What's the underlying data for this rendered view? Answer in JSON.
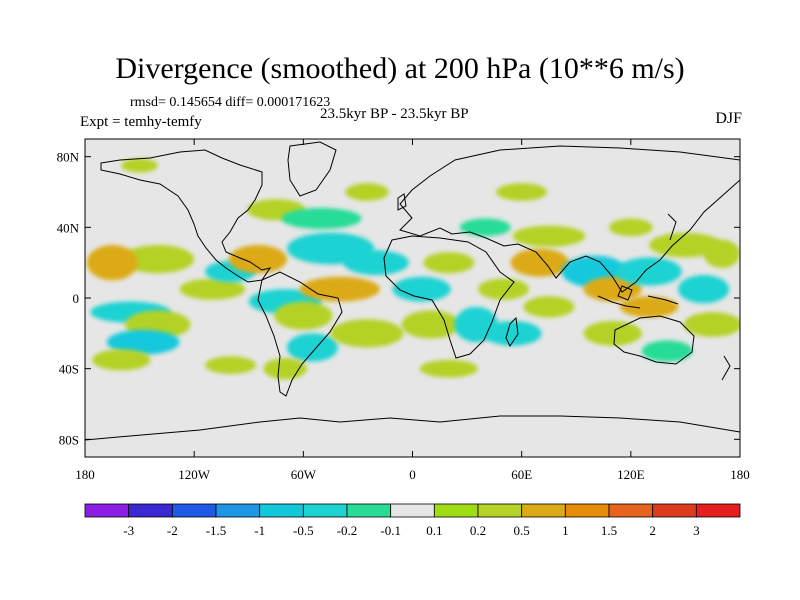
{
  "title": "Divergence (smoothed) at 200 hPa (10**6 m/s)",
  "stats": "rmsd= 0.145654 diff= 0.000171623",
  "experiment": "Expt = temhy-temfy",
  "subtitle": "23.5kyr BP - 23.5kyr BP",
  "season": "DJF",
  "colors": {
    "land_ocean_bg": "#e6e6e6",
    "coast": "#000000"
  },
  "chart_data": {
    "type": "heatmap",
    "projection": "cylindrical-equidistant",
    "lon_range": [
      -180,
      180
    ],
    "lat_range": [
      -90,
      90
    ],
    "x_ticks": [
      "180",
      "120W",
      "60W",
      "0",
      "60E",
      "120E",
      "180"
    ],
    "x_tick_values": [
      -180,
      -120,
      -60,
      0,
      60,
      120,
      180
    ],
    "y_ticks": [
      "80N",
      "40N",
      "0",
      "40S",
      "80S"
    ],
    "y_tick_values": [
      80,
      40,
      0,
      -40,
      -80
    ],
    "colorbar": {
      "labels": [
        "-3",
        "-2",
        "-1.5",
        "-1",
        "-0.5",
        "-0.2",
        "-0.1",
        "0.1",
        "0.2",
        "0.5",
        "1",
        "1.5",
        "2",
        "3"
      ],
      "levels": [
        -3,
        -2,
        -1.5,
        -1,
        -0.5,
        -0.2,
        -0.1,
        0.1,
        0.2,
        0.5,
        1,
        1.5,
        2,
        3
      ],
      "colors": [
        "#8c1ee6",
        "#3c28d2",
        "#1e5ae6",
        "#1e96e6",
        "#14c8dc",
        "#1ed2d2",
        "#28dc96",
        "#e6e6e6",
        "#a0dc14",
        "#b4d228",
        "#dcaa14",
        "#e68c0a",
        "#e6641e",
        "#dc3c1e",
        "#e61e1e"
      ]
    },
    "regions": [
      {
        "lon": -140,
        "lat": 22,
        "rx": 20,
        "ry": 8,
        "value": 0.3
      },
      {
        "lon": -165,
        "lat": 20,
        "rx": 14,
        "ry": 10,
        "value": 0.5
      },
      {
        "lon": -155,
        "lat": -8,
        "rx": 22,
        "ry": 6,
        "value": -0.3
      },
      {
        "lon": -140,
        "lat": -15,
        "rx": 18,
        "ry": 8,
        "value": 0.2
      },
      {
        "lon": -148,
        "lat": -25,
        "rx": 20,
        "ry": 7,
        "value": -0.6
      },
      {
        "lon": -160,
        "lat": -35,
        "rx": 16,
        "ry": 6,
        "value": 0.2
      },
      {
        "lon": -110,
        "lat": 5,
        "rx": 18,
        "ry": 6,
        "value": 0.4
      },
      {
        "lon": -100,
        "lat": 15,
        "rx": 14,
        "ry": 6,
        "value": -0.3
      },
      {
        "lon": -85,
        "lat": 22,
        "rx": 16,
        "ry": 8,
        "value": 0.6
      },
      {
        "lon": -70,
        "lat": -2,
        "rx": 20,
        "ry": 7,
        "value": -0.4
      },
      {
        "lon": -60,
        "lat": -10,
        "rx": 16,
        "ry": 8,
        "value": 0.3
      },
      {
        "lon": -55,
        "lat": -28,
        "rx": 14,
        "ry": 8,
        "value": -0.3
      },
      {
        "lon": -70,
        "lat": -40,
        "rx": 12,
        "ry": 6,
        "value": 0.2
      },
      {
        "lon": -45,
        "lat": 28,
        "rx": 24,
        "ry": 9,
        "value": -0.5
      },
      {
        "lon": -40,
        "lat": 5,
        "rx": 22,
        "ry": 7,
        "value": 0.5
      },
      {
        "lon": -25,
        "lat": -20,
        "rx": 20,
        "ry": 8,
        "value": 0.2
      },
      {
        "lon": -20,
        "lat": 20,
        "rx": 18,
        "ry": 7,
        "value": -0.3
      },
      {
        "lon": -75,
        "lat": 50,
        "rx": 16,
        "ry": 6,
        "value": 0.2
      },
      {
        "lon": -50,
        "lat": 45,
        "rx": 22,
        "ry": 6,
        "value": -0.2
      },
      {
        "lon": -25,
        "lat": 60,
        "rx": 12,
        "ry": 5,
        "value": 0.2
      },
      {
        "lon": -150,
        "lat": 75,
        "rx": 10,
        "ry": 4,
        "value": 0.2
      },
      {
        "lon": 5,
        "lat": 5,
        "rx": 16,
        "ry": 7,
        "value": -0.3
      },
      {
        "lon": 10,
        "lat": -15,
        "rx": 16,
        "ry": 8,
        "value": 0.4
      },
      {
        "lon": 20,
        "lat": 20,
        "rx": 14,
        "ry": 6,
        "value": 0.2
      },
      {
        "lon": 35,
        "lat": -15,
        "rx": 12,
        "ry": 10,
        "value": -0.4
      },
      {
        "lon": 50,
        "lat": 5,
        "rx": 14,
        "ry": 6,
        "value": 0.3
      },
      {
        "lon": 55,
        "lat": -20,
        "rx": 16,
        "ry": 7,
        "value": -0.3
      },
      {
        "lon": 70,
        "lat": 20,
        "rx": 16,
        "ry": 8,
        "value": 0.5
      },
      {
        "lon": 75,
        "lat": -5,
        "rx": 14,
        "ry": 6,
        "value": 0.2
      },
      {
        "lon": 75,
        "lat": 35,
        "rx": 20,
        "ry": 6,
        "value": 0.3
      },
      {
        "lon": 40,
        "lat": 40,
        "rx": 14,
        "ry": 5,
        "value": -0.2
      },
      {
        "lon": 60,
        "lat": 60,
        "rx": 14,
        "ry": 5,
        "value": 0.2
      },
      {
        "lon": 100,
        "lat": 15,
        "rx": 18,
        "ry": 9,
        "value": -0.6
      },
      {
        "lon": 110,
        "lat": 5,
        "rx": 16,
        "ry": 7,
        "value": 0.8
      },
      {
        "lon": 130,
        "lat": 15,
        "rx": 18,
        "ry": 8,
        "value": -0.5
      },
      {
        "lon": 130,
        "lat": -5,
        "rx": 16,
        "ry": 6,
        "value": 0.6
      },
      {
        "lon": 110,
        "lat": -20,
        "rx": 16,
        "ry": 7,
        "value": 0.3
      },
      {
        "lon": 150,
        "lat": 30,
        "rx": 20,
        "ry": 7,
        "value": 0.4
      },
      {
        "lon": 160,
        "lat": 5,
        "rx": 14,
        "ry": 8,
        "value": -0.3
      },
      {
        "lon": 165,
        "lat": -15,
        "rx": 16,
        "ry": 7,
        "value": 0.2
      },
      {
        "lon": 140,
        "lat": -30,
        "rx": 14,
        "ry": 6,
        "value": -0.2
      },
      {
        "lon": 170,
        "lat": 25,
        "rx": 10,
        "ry": 8,
        "value": 0.3
      },
      {
        "lon": 20,
        "lat": -40,
        "rx": 16,
        "ry": 5,
        "value": 0.2
      },
      {
        "lon": -100,
        "lat": -38,
        "rx": 14,
        "ry": 5,
        "value": 0.2
      },
      {
        "lon": 120,
        "lat": 40,
        "rx": 12,
        "ry": 5,
        "value": 0.2
      }
    ]
  }
}
